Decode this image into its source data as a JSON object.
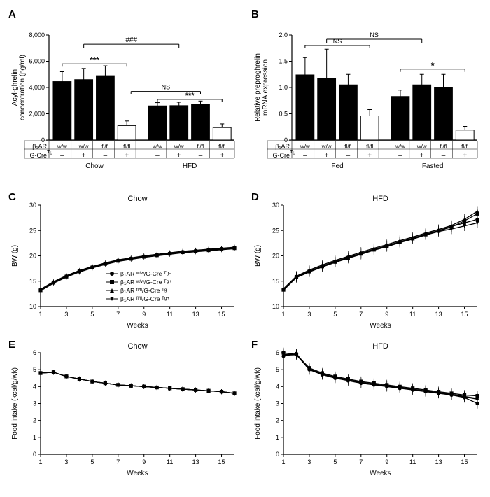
{
  "colors": {
    "black": "#000000",
    "white": "#ffffff",
    "axis": "#000000"
  },
  "panelA": {
    "label": "A",
    "type": "bar",
    "ylabel": "Acyl-ghrelin\nconcentration (pg/ml)",
    "ylim": [
      0,
      8000
    ],
    "yticks": [
      0,
      2000,
      4000,
      6000,
      8000
    ],
    "ytick_labels": [
      "0",
      "2,000",
      "4,000",
      "6,000",
      "8,000"
    ],
    "groups": [
      "Chow",
      "HFD"
    ],
    "bars_per_group": 4,
    "bar_fill": [
      "#000000",
      "#000000",
      "#000000",
      "#ffffff"
    ],
    "values": [
      [
        4450,
        4600,
        4900,
        1100
      ],
      [
        2600,
        2620,
        2700,
        950
      ]
    ],
    "errors": [
      [
        750,
        850,
        750,
        350
      ],
      [
        250,
        260,
        270,
        280
      ]
    ],
    "label_row1_header": "β₁AR",
    "label_row1": [
      "w/w",
      "w/w",
      "fl/fl",
      "fl/fl",
      "w/w",
      "w/w",
      "fl/fl",
      "fl/fl"
    ],
    "label_row2_header": "G-Cre",
    "label_row2_sup": "Tg",
    "label_row2": [
      "–",
      "+",
      "–",
      "+",
      "–",
      "+",
      "–",
      "+"
    ],
    "annotations": {
      "stars_chow": "***",
      "stars_hfd": "***",
      "hash": "###",
      "ns": "NS"
    }
  },
  "panelB": {
    "label": "B",
    "type": "bar",
    "ylabel": "Relative preproghrelin\nmRNA expression",
    "ylim": [
      0,
      2.0
    ],
    "yticks": [
      0,
      0.5,
      1.0,
      1.5,
      2.0
    ],
    "ytick_labels": [
      "0",
      "0.5",
      "1.0",
      "1.5",
      "2.0"
    ],
    "groups": [
      "Fed",
      "Fasted"
    ],
    "bars_per_group": 4,
    "bar_fill": [
      "#000000",
      "#000000",
      "#000000",
      "#ffffff"
    ],
    "values": [
      [
        1.24,
        1.18,
        1.05,
        0.46
      ],
      [
        0.83,
        1.05,
        1.0,
        0.19
      ]
    ],
    "errors": [
      [
        0.33,
        0.55,
        0.2,
        0.12
      ],
      [
        0.12,
        0.2,
        0.25,
        0.07
      ]
    ],
    "label_row1_header": "β₁AR",
    "label_row1": [
      "w/w",
      "w/w",
      "fl/fl",
      "fl/fl",
      "w/w",
      "w/w",
      "fl/fl",
      "fl/fl"
    ],
    "label_row2_header": "G-Cre",
    "label_row2_sup": "Tg",
    "label_row2": [
      "–",
      "+",
      "–",
      "+",
      "–",
      "+",
      "–",
      "+"
    ],
    "annotations": {
      "ns_top": "NS",
      "ns_left": "NS",
      "star_right": "*"
    }
  },
  "panelC": {
    "label": "C",
    "type": "line",
    "title": "Chow",
    "ylabel": "BW (g)",
    "xlabel": "Weeks",
    "xlim": [
      1,
      16
    ],
    "xticks": [
      1,
      3,
      5,
      7,
      9,
      11,
      13,
      15
    ],
    "ylim": [
      10,
      30
    ],
    "yticks": [
      10,
      15,
      20,
      25,
      30
    ],
    "legend": [
      {
        "marker": "circle",
        "label": "β₁AR ᵂ/ᵂ/G-Cre ᵀᵍ⁻"
      },
      {
        "marker": "square",
        "label": "β₁AR ᵂ/ᵂ/G-Cre ᵀᵍ⁺"
      },
      {
        "marker": "triangle",
        "label": "β₁AR ᶠˡ/ᶠˡ/G-Cre ᵀᵍ⁻"
      },
      {
        "marker": "inv-triangle",
        "label": "β₁AR ᶠˡ/ᶠˡ/G-Cre ᵀᵍ⁺"
      }
    ],
    "x": [
      1,
      2,
      3,
      4,
      5,
      6,
      7,
      8,
      9,
      10,
      11,
      12,
      13,
      14,
      15,
      16
    ],
    "series": {
      "s1": [
        13.3,
        14.8,
        16.0,
        17.0,
        17.8,
        18.5,
        19.1,
        19.5,
        19.9,
        20.2,
        20.5,
        20.8,
        21.0,
        21.2,
        21.4,
        21.6
      ],
      "s2": [
        13.2,
        14.7,
        15.9,
        16.9,
        17.7,
        18.4,
        19.0,
        19.4,
        19.8,
        20.1,
        20.4,
        20.7,
        20.9,
        21.1,
        21.3,
        21.5
      ],
      "s3": [
        13.4,
        14.9,
        16.1,
        17.1,
        17.9,
        18.6,
        19.2,
        19.6,
        20.0,
        20.3,
        20.6,
        20.9,
        21.1,
        21.3,
        21.5,
        21.7
      ],
      "s4": [
        13.1,
        14.6,
        15.8,
        16.8,
        17.6,
        18.3,
        18.9,
        19.3,
        19.7,
        20.0,
        20.3,
        20.6,
        20.8,
        21.0,
        21.2,
        21.4
      ]
    },
    "err": 0.5
  },
  "panelD": {
    "label": "D",
    "type": "line",
    "title": "HFD",
    "ylabel": "BW (g)",
    "xlabel": "Weeks",
    "xlim": [
      1,
      16
    ],
    "xticks": [
      1,
      3,
      5,
      7,
      9,
      11,
      13,
      15
    ],
    "ylim": [
      10,
      30
    ],
    "yticks": [
      10,
      15,
      20,
      25,
      30
    ],
    "x": [
      1,
      2,
      3,
      4,
      5,
      6,
      7,
      8,
      9,
      10,
      11,
      12,
      13,
      14,
      15,
      16
    ],
    "series": {
      "s1": [
        13.4,
        15.9,
        17.0,
        18.0,
        18.9,
        19.7,
        20.5,
        21.3,
        22.0,
        22.8,
        23.5,
        24.3,
        25.0,
        25.8,
        26.5,
        27.2
      ],
      "s2": [
        13.3,
        15.8,
        16.9,
        17.9,
        18.8,
        19.6,
        20.4,
        21.2,
        21.9,
        22.7,
        23.4,
        24.2,
        24.9,
        25.7,
        26.9,
        28.3
      ],
      "s3": [
        13.5,
        16.0,
        17.2,
        18.2,
        19.1,
        19.9,
        20.7,
        21.5,
        22.2,
        23.0,
        23.7,
        24.5,
        25.2,
        26.0,
        27.2,
        28.8
      ],
      "s4": [
        13.2,
        15.7,
        16.8,
        17.8,
        18.7,
        19.5,
        20.3,
        21.1,
        21.8,
        22.6,
        23.3,
        24.1,
        24.8,
        25.3,
        25.9,
        26.5
      ]
    },
    "err": 1.0
  },
  "panelE": {
    "label": "E",
    "type": "line",
    "title": "Chow",
    "ylabel": "Food intake (kcal/g/wk)",
    "xlabel": "Weeks",
    "xlim": [
      1,
      16
    ],
    "xticks": [
      1,
      3,
      5,
      7,
      9,
      11,
      13,
      15
    ],
    "ylim": [
      0,
      6
    ],
    "yticks": [
      0,
      1,
      2,
      3,
      4,
      5,
      6
    ],
    "x": [
      1,
      2,
      3,
      4,
      5,
      6,
      7,
      8,
      9,
      10,
      11,
      12,
      13,
      14,
      15,
      16
    ],
    "series": {
      "s1": [
        4.8,
        4.85,
        4.6,
        4.45,
        4.3,
        4.2,
        4.1,
        4.05,
        4.0,
        3.95,
        3.9,
        3.85,
        3.8,
        3.75,
        3.7,
        3.6
      ],
      "s2": [
        4.8,
        4.85,
        4.6,
        4.45,
        4.3,
        4.2,
        4.1,
        4.05,
        4.0,
        3.95,
        3.9,
        3.85,
        3.8,
        3.75,
        3.7,
        3.6
      ],
      "s3": [
        4.8,
        4.85,
        4.6,
        4.45,
        4.3,
        4.2,
        4.1,
        4.05,
        4.0,
        3.95,
        3.9,
        3.85,
        3.8,
        3.75,
        3.7,
        3.6
      ],
      "s4": [
        4.8,
        4.85,
        4.6,
        4.45,
        4.3,
        4.2,
        4.1,
        4.05,
        4.0,
        3.95,
        3.9,
        3.85,
        3.8,
        3.75,
        3.7,
        3.6
      ]
    },
    "err": 0.15
  },
  "panelF": {
    "label": "F",
    "type": "line",
    "title": "HFD",
    "ylabel": "Food intake (kcal/g/wk)",
    "xlabel": "Weeks",
    "xlim": [
      1,
      16
    ],
    "xticks": [
      1,
      3,
      5,
      7,
      9,
      11,
      13,
      15
    ],
    "ylim": [
      0,
      6
    ],
    "yticks": [
      0,
      1,
      2,
      3,
      4,
      5,
      6
    ],
    "x": [
      1,
      2,
      3,
      4,
      5,
      6,
      7,
      8,
      9,
      10,
      11,
      12,
      13,
      14,
      15,
      16
    ],
    "series": {
      "s1": [
        5.8,
        5.95,
        5.0,
        4.7,
        4.5,
        4.35,
        4.2,
        4.1,
        4.0,
        3.9,
        3.8,
        3.7,
        3.6,
        3.5,
        3.35,
        3.0
      ],
      "s2": [
        6.0,
        5.9,
        5.1,
        4.8,
        4.6,
        4.45,
        4.3,
        4.2,
        4.1,
        4.0,
        3.9,
        3.8,
        3.7,
        3.6,
        3.5,
        3.45
      ],
      "s3": [
        5.9,
        5.92,
        5.05,
        4.75,
        4.55,
        4.4,
        4.25,
        4.15,
        4.05,
        3.95,
        3.85,
        3.75,
        3.65,
        3.55,
        3.42,
        3.3
      ],
      "s4": [
        5.85,
        5.88,
        5.0,
        4.72,
        4.52,
        4.37,
        4.22,
        4.12,
        4.02,
        3.92,
        3.82,
        3.72,
        3.62,
        3.52,
        3.4,
        3.25
      ]
    },
    "err": 0.3
  }
}
